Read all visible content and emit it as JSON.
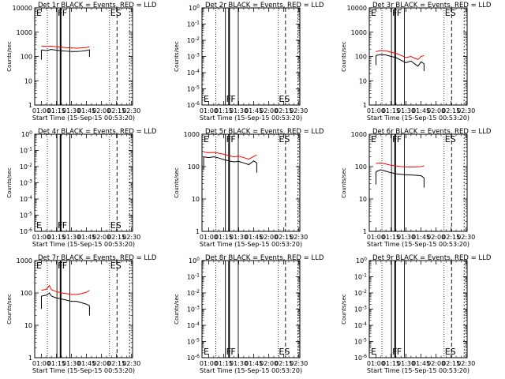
{
  "figure": {
    "xlabel_prefix": "Start Time (",
    "xlabel_time": "15-Sep-15 00:53:20",
    "xlabel_suffix": ")",
    "ylabel": "Counts/sec",
    "x_tick_labels": [
      "01:00",
      "01:15",
      "01:30",
      "01:45",
      "02:00",
      "02:15",
      "02:30"
    ],
    "event_color": "#000000",
    "lld_color": "#ff0000"
  },
  "chart_data": [
    {
      "type": "line",
      "title": "Det 1r BLACK = Events, RED = LLD",
      "y_scale": "log",
      "ylim": [
        1,
        10000
      ],
      "xlim": [
        "00:53:20",
        "02:31:00"
      ],
      "y_tick_labels": [
        "1",
        "10",
        "100",
        "1000",
        "10000"
      ],
      "marker_labels": [
        "E",
        "F",
        "F",
        "E",
        "S"
      ],
      "series": [
        {
          "color": "black",
          "x": [
            "01:00",
            "01:05",
            "01:10",
            "01:15",
            "01:20",
            "01:25",
            "01:30",
            "01:35",
            "01:40",
            "01:45",
            "01:48"
          ],
          "y": [
            185,
            175,
            195,
            180,
            170,
            165,
            160,
            160,
            165,
            175,
            190
          ]
        },
        {
          "color": "red",
          "x": [
            "01:00",
            "01:05",
            "01:10",
            "01:15",
            "01:20",
            "01:25",
            "01:30",
            "01:35",
            "01:40",
            "01:45",
            "01:48"
          ],
          "y": [
            270,
            260,
            265,
            250,
            240,
            230,
            225,
            220,
            225,
            235,
            250
          ]
        }
      ]
    },
    {
      "type": "line",
      "title": "Det 2r BLACK = Events, RED = LLD",
      "y_scale": "log",
      "ylim": [
        1e-06,
        1
      ],
      "xlim": [
        "00:53:20",
        "02:31:00"
      ],
      "y_tick_labels": [
        "10^-6",
        "10^-5",
        "10^-4",
        "10^-3",
        "10^-2",
        "10^-1",
        "10^0"
      ],
      "marker_labels": [
        "E",
        "F",
        "F",
        "E",
        "S"
      ],
      "series": []
    },
    {
      "type": "line",
      "title": "Det 3r BLACK = Events, RED = LLD",
      "y_scale": "log",
      "ylim": [
        1,
        10000
      ],
      "xlim": [
        "00:53:20",
        "02:31:00"
      ],
      "y_tick_labels": [
        "1",
        "10",
        "100",
        "1000",
        "10000"
      ],
      "marker_labels": [
        "E",
        "F",
        "F",
        "E",
        "S"
      ],
      "series": [
        {
          "color": "black",
          "x": [
            "01:00",
            "01:05",
            "01:10",
            "01:15",
            "01:20",
            "01:25",
            "01:30",
            "01:35",
            "01:40",
            "01:42",
            "01:45",
            "01:48"
          ],
          "y": [
            110,
            120,
            115,
            100,
            90,
            70,
            55,
            65,
            45,
            40,
            60,
            50
          ]
        },
        {
          "color": "red",
          "x": [
            "01:00",
            "01:05",
            "01:10",
            "01:15",
            "01:20",
            "01:25",
            "01:30",
            "01:35",
            "01:40",
            "01:42",
            "01:45",
            "01:48"
          ],
          "y": [
            160,
            175,
            170,
            150,
            135,
            110,
            90,
            100,
            80,
            75,
            100,
            110
          ]
        }
      ]
    },
    {
      "type": "line",
      "title": "Det 4r BLACK = Events, RED = LLD",
      "y_scale": "log",
      "ylim": [
        1e-06,
        1
      ],
      "xlim": [
        "00:53:20",
        "02:31:00"
      ],
      "y_tick_labels": [
        "10^-6",
        "10^-5",
        "10^-4",
        "10^-3",
        "10^-2",
        "10^-1",
        "10^0"
      ],
      "marker_labels": [
        "E",
        "F",
        "F",
        "E",
        "S"
      ],
      "series": []
    },
    {
      "type": "line",
      "title": "Det 5r BLACK = Events, RED = LLD",
      "y_scale": "log",
      "ylim": [
        1,
        1000
      ],
      "xlim": [
        "00:53:20",
        "02:31:00"
      ],
      "y_tick_labels": [
        "1",
        "10",
        "100",
        "1000"
      ],
      "marker_labels": [
        "E",
        "F",
        "F",
        "E",
        "S"
      ],
      "series": [
        {
          "color": "black",
          "x": [
            "00:55",
            "01:00",
            "01:05",
            "01:10",
            "01:15",
            "01:20",
            "01:25",
            "01:30",
            "01:35",
            "01:40",
            "01:45",
            "01:48"
          ],
          "y": [
            200,
            190,
            200,
            185,
            165,
            150,
            140,
            145,
            130,
            115,
            150,
            130
          ]
        },
        {
          "color": "red",
          "x": [
            "00:55",
            "01:00",
            "01:05",
            "01:10",
            "01:15",
            "01:20",
            "01:25",
            "01:30",
            "01:35",
            "01:40",
            "01:45",
            "01:48"
          ],
          "y": [
            280,
            270,
            275,
            260,
            240,
            220,
            200,
            210,
            190,
            170,
            205,
            230
          ]
        }
      ]
    },
    {
      "type": "line",
      "title": "Det 6r BLACK = Events, RED = LLD",
      "y_scale": "log",
      "ylim": [
        1,
        1000
      ],
      "xlim": [
        "00:53:20",
        "02:31:00"
      ],
      "y_tick_labels": [
        "1",
        "10",
        "100",
        "1000"
      ],
      "marker_labels": [
        "E",
        "F",
        "F",
        "E",
        "S"
      ],
      "series": [
        {
          "color": "black",
          "x": [
            "01:00",
            "01:05",
            "01:10",
            "01:15",
            "01:20",
            "01:25",
            "01:30",
            "01:35",
            "01:40",
            "01:45",
            "01:48"
          ],
          "y": [
            70,
            80,
            72,
            65,
            60,
            58,
            56,
            55,
            54,
            52,
            45
          ]
        },
        {
          "color": "red",
          "x": [
            "01:00",
            "01:05",
            "01:10",
            "01:15",
            "01:20",
            "01:25",
            "01:30",
            "01:35",
            "01:40",
            "01:45",
            "01:48"
          ],
          "y": [
            125,
            130,
            120,
            110,
            105,
            100,
            98,
            97,
            98,
            100,
            105
          ]
        }
      ]
    },
    {
      "type": "line",
      "title": "Det 7r BLACK = Events, RED = LLD",
      "y_scale": "log",
      "ylim": [
        1,
        1000
      ],
      "xlim": [
        "00:53:20",
        "02:31:00"
      ],
      "y_tick_labels": [
        "1",
        "10",
        "100",
        "1000"
      ],
      "marker_labels": [
        "E",
        "F",
        "F",
        "E",
        "S"
      ],
      "series": [
        {
          "color": "black",
          "x": [
            "01:00",
            "01:05",
            "01:08",
            "01:10",
            "01:15",
            "01:20",
            "01:25",
            "01:30",
            "01:35",
            "01:40",
            "01:45",
            "01:48"
          ],
          "y": [
            80,
            85,
            100,
            80,
            70,
            65,
            60,
            55,
            55,
            50,
            45,
            40
          ]
        },
        {
          "color": "red",
          "x": [
            "01:00",
            "01:05",
            "01:08",
            "01:10",
            "01:15",
            "01:20",
            "01:25",
            "01:30",
            "01:35",
            "01:40",
            "01:45",
            "01:48"
          ],
          "y": [
            120,
            130,
            170,
            125,
            110,
            100,
            95,
            90,
            90,
            95,
            105,
            120
          ]
        }
      ]
    },
    {
      "type": "line",
      "title": "Det 8r BLACK = Events, RED = LLD",
      "y_scale": "log",
      "ylim": [
        1e-06,
        1
      ],
      "xlim": [
        "00:53:20",
        "02:31:00"
      ],
      "y_tick_labels": [
        "10^-6",
        "10^-5",
        "10^-4",
        "10^-3",
        "10^-2",
        "10^-1",
        "10^0"
      ],
      "marker_labels": [
        "E",
        "F",
        "F",
        "E",
        "S"
      ],
      "series": []
    },
    {
      "type": "line",
      "title": "Det 9r BLACK = Events, RED = LLD",
      "y_scale": "log",
      "ylim": [
        1e-06,
        1
      ],
      "xlim": [
        "00:53:20",
        "02:31:00"
      ],
      "y_tick_labels": [
        "10^-6",
        "10^-5",
        "10^-4",
        "10^-3",
        "10^-2",
        "10^-1",
        "10^0"
      ],
      "marker_labels": [
        "E",
        "F",
        "F",
        "E",
        "S"
      ],
      "series": []
    }
  ]
}
